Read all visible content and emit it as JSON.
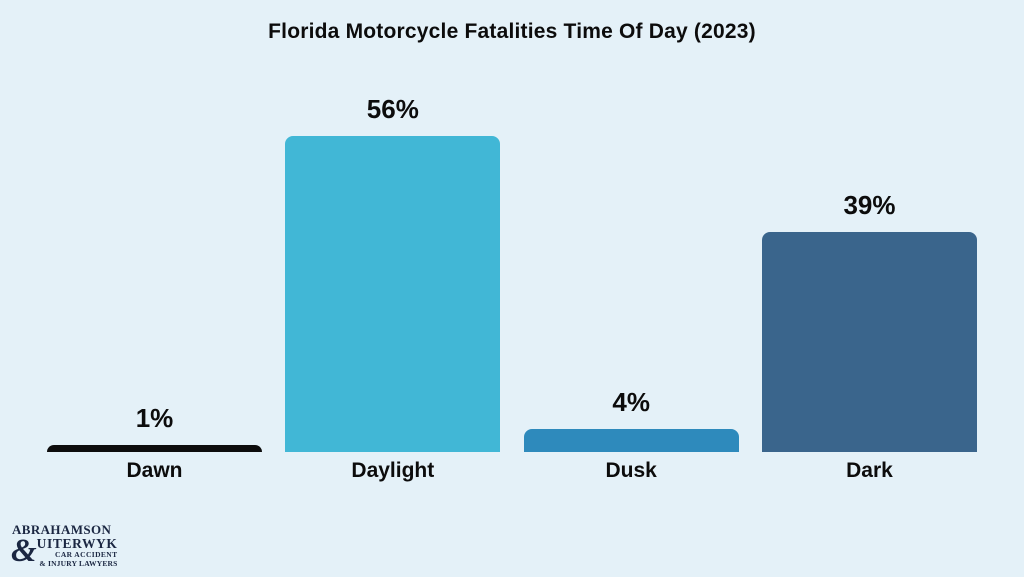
{
  "chart_data": {
    "type": "bar",
    "title": "Florida Motorcycle Fatalities Time Of Day (2023)",
    "categories": [
      "Dawn",
      "Daylight",
      "Dusk",
      "Dark"
    ],
    "values": [
      1,
      56,
      4,
      39
    ],
    "value_labels": [
      "1%",
      "56%",
      "4%",
      "39%"
    ],
    "unit": "%",
    "ylim": [
      0,
      60
    ],
    "grid": false,
    "legend": null,
    "bar_colors": [
      "#0d0d0d",
      "#41b7d6",
      "#2e8abc",
      "#3a658c"
    ]
  },
  "colors": {
    "background": "#e4f1f8",
    "text": "#0c0c0c",
    "logo": "#1b2742"
  },
  "logo": {
    "line1": "ABRAHAMSON",
    "ampersand": "&",
    "line2": "UITERWYK",
    "line3": "CAR ACCIDENT",
    "line4": "& INJURY LAWYERS"
  }
}
